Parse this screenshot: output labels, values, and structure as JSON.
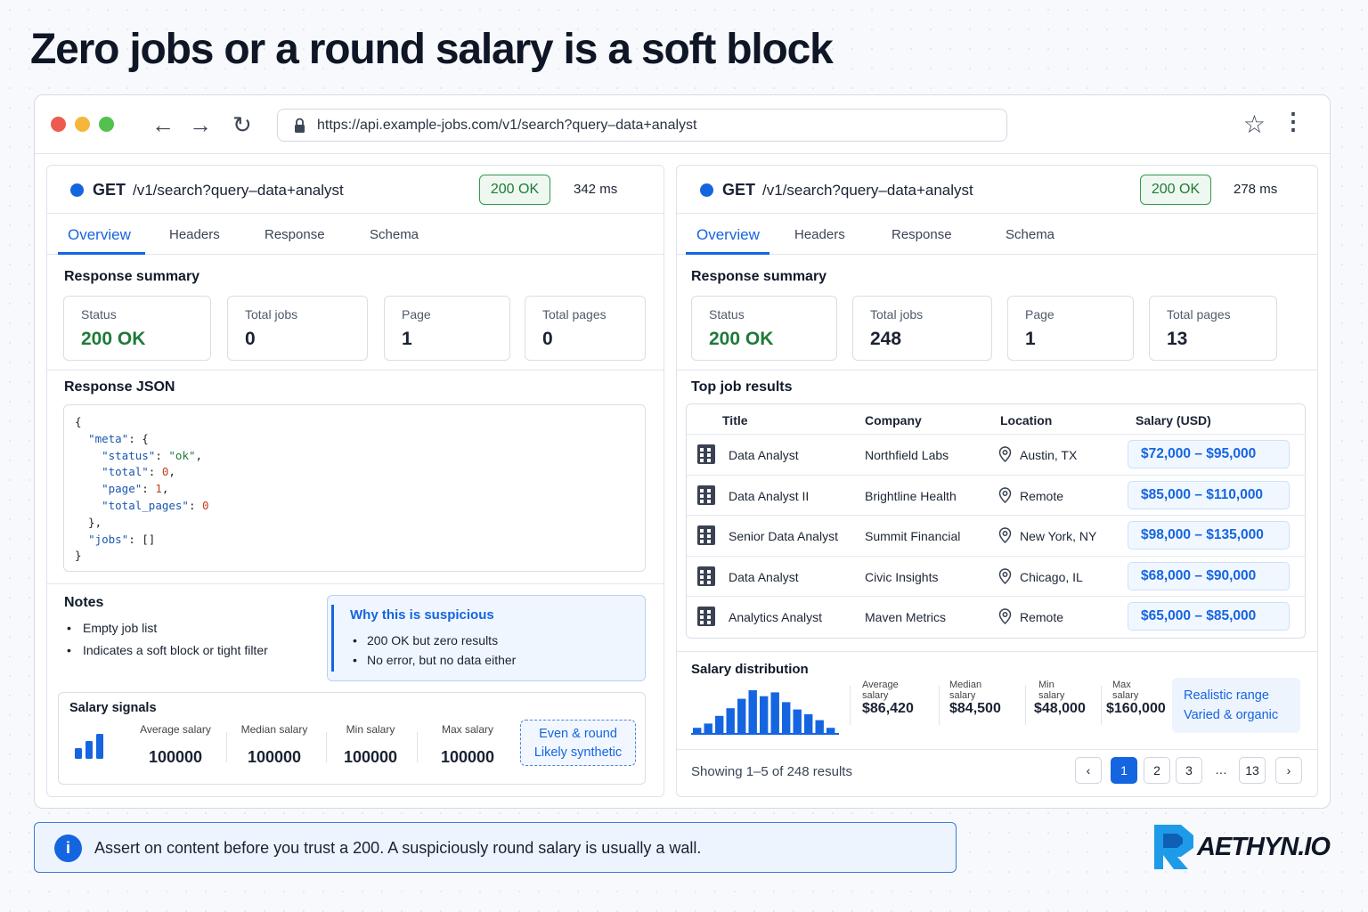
{
  "page_title": "Zero jobs or a round salary is a soft block",
  "browser": {
    "url": "https://api.example-jobs.com/v1/search?query–data+analyst"
  },
  "left": {
    "method": "GET",
    "path": "/v1/search?query–data+analyst",
    "status_badge": "200 OK",
    "latency": "342 ms",
    "tabs": [
      "Overview",
      "Headers",
      "Response",
      "Schema"
    ],
    "summary_title": "Response summary",
    "cards": [
      {
        "label": "Status",
        "value": "200 OK"
      },
      {
        "label": "Total jobs",
        "value": "0"
      },
      {
        "label": "Page",
        "value": "1"
      },
      {
        "label": "Total pages",
        "value": "0"
      }
    ],
    "json_title": "Response JSON",
    "json": {
      "meta_key": "\"meta\"",
      "status_key": "\"status\"",
      "status_val": "\"ok\"",
      "total_key": "\"total\"",
      "total_val": "0",
      "page_key": "\"page\"",
      "page_val": "1",
      "tp_key": "\"total_pages\"",
      "tp_val": "0",
      "jobs_key": "\"jobs\"",
      "jobs_val": "[]"
    },
    "notes_title": "Notes",
    "notes": [
      "Empty job list",
      "Indicates a soft block or tight filter"
    ],
    "why_title": "Why this is suspicious",
    "why_items": [
      "200 OK but zero results",
      "No error, but no data either"
    ],
    "signals_title": "Salary signals",
    "signals": [
      {
        "label": "Average salary",
        "value": "100000"
      },
      {
        "label": "Median salary",
        "value": "100000"
      },
      {
        "label": "Min salary",
        "value": "100000"
      },
      {
        "label": "Max salary",
        "value": "100000"
      }
    ],
    "synthetic_badge": [
      "Even & round",
      "Likely synthetic"
    ]
  },
  "right": {
    "method": "GET",
    "path": "/v1/search?query–data+analyst",
    "status_badge": "200 OK",
    "latency": "278 ms",
    "tabs": [
      "Overview",
      "Headers",
      "Response",
      "Schema"
    ],
    "summary_title": "Response summary",
    "cards": [
      {
        "label": "Status",
        "value": "200 OK"
      },
      {
        "label": "Total jobs",
        "value": "248"
      },
      {
        "label": "Page",
        "value": "1"
      },
      {
        "label": "Total pages",
        "value": "13"
      }
    ],
    "results_title": "Top job results",
    "columns": [
      "Title",
      "Company",
      "Location",
      "Salary (USD)"
    ],
    "rows": [
      {
        "title": "Data Analyst",
        "company": "Northfield Labs",
        "location": "Austin, TX",
        "salary": "$72,000 – $95,000"
      },
      {
        "title": "Data Analyst II",
        "company": "Brightline Health",
        "location": "Remote",
        "salary": "$85,000 – $110,000"
      },
      {
        "title": "Senior Data Analyst",
        "company": "Summit Financial",
        "location": "New York, NY",
        "salary": "$98,000 – $135,000"
      },
      {
        "title": "Data Analyst",
        "company": "Civic Insights",
        "location": "Chicago, IL",
        "salary": "$68,000 – $90,000"
      },
      {
        "title": "Analytics Analyst",
        "company": "Maven Metrics",
        "location": "Remote",
        "salary": "$65,000 – $85,000"
      }
    ],
    "dist_title": "Salary distribution",
    "dist_histogram_relative": [
      0.12,
      0.22,
      0.4,
      0.58,
      0.8,
      1.0,
      0.86,
      0.95,
      0.72,
      0.55,
      0.44,
      0.3,
      0.12
    ],
    "dist_stats": [
      {
        "label": "Average salary",
        "value": "$86,420"
      },
      {
        "label": "Median salary",
        "value": "$84,500"
      },
      {
        "label": "Min salary",
        "value": "$48,000"
      },
      {
        "label": "Max salary",
        "value": "$160,000"
      }
    ],
    "realistic_badge": [
      "Realistic range",
      "Varied & organic"
    ],
    "showing": "Showing 1–5 of 248 results",
    "pages": [
      "1",
      "2",
      "3",
      "…",
      "13"
    ]
  },
  "assert_text": "Assert on content before you trust a 200. A suspiciously round salary is usually a wall.",
  "logo_text": "AETHYN.IO",
  "colors": {
    "accent": "#1565e0",
    "ok_green": "#1f7a38",
    "dark": "#0f1626"
  }
}
